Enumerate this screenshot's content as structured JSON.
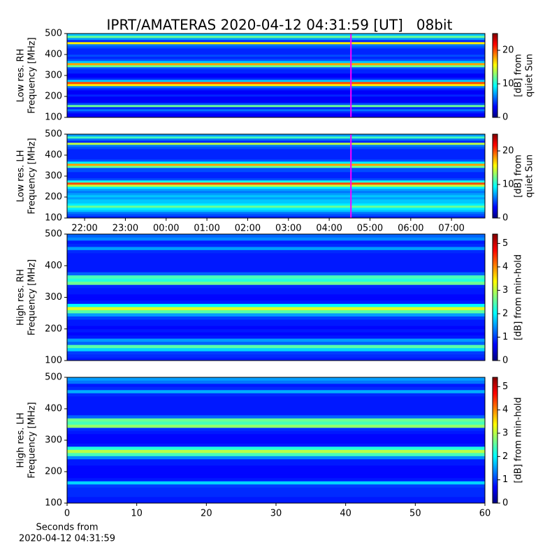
{
  "title": "IPRT/AMATERAS 2020-04-12 04:31:59 [UT]   08bit",
  "chart_data": [
    {
      "type": "heatmap",
      "ylabel": [
        "Low res. RH",
        "Frequency [MHz]"
      ],
      "colormap": "jet",
      "y": [
        105,
        115,
        125,
        135,
        145,
        155,
        165,
        175,
        185,
        195,
        205,
        215,
        225,
        235,
        245,
        255,
        265,
        275,
        285,
        295,
        305,
        315,
        325,
        335,
        345,
        355,
        365,
        375,
        385,
        395,
        405,
        415,
        425,
        435,
        445,
        455,
        465,
        475,
        485,
        495
      ],
      "values": [
        3,
        3,
        4,
        6,
        4,
        12,
        5,
        3,
        3,
        3,
        4,
        3,
        3,
        4,
        6,
        16,
        20,
        8,
        4,
        3,
        3,
        4,
        4,
        5,
        12,
        18,
        8,
        5,
        4,
        5,
        4,
        4,
        4,
        5,
        6,
        16,
        4,
        7,
        12,
        8
      ],
      "ylim": [
        100,
        500
      ],
      "yticks": [
        100,
        200,
        300,
        400,
        500
      ],
      "xlim": [
        21.57,
        31.82
      ],
      "marker_x": 28.533,
      "marker_color": "#ff00ff",
      "clim": [
        0,
        25
      ],
      "cticks": [
        0,
        10,
        20
      ],
      "clabel": [
        "[dB] from",
        "quiet Sun"
      ]
    },
    {
      "type": "heatmap",
      "ylabel": [
        "Low res. LH",
        "Frequency [MHz]"
      ],
      "colormap": "jet",
      "y": [
        105,
        115,
        125,
        135,
        145,
        155,
        165,
        175,
        185,
        195,
        205,
        215,
        225,
        235,
        245,
        255,
        265,
        275,
        285,
        295,
        305,
        315,
        325,
        335,
        345,
        355,
        365,
        375,
        385,
        395,
        405,
        415,
        425,
        435,
        445,
        455,
        465,
        475,
        485,
        495
      ],
      "values": [
        4,
        5,
        6,
        8,
        9,
        12,
        9,
        8,
        8,
        7,
        8,
        7,
        6,
        7,
        9,
        14,
        20,
        10,
        5,
        4,
        4,
        4,
        5,
        5,
        12,
        18,
        9,
        5,
        4,
        4,
        4,
        4,
        4,
        5,
        6,
        14,
        4,
        6,
        11,
        7
      ],
      "ylim": [
        100,
        500
      ],
      "yticks": [
        100,
        200,
        300,
        400,
        500
      ],
      "xlim": [
        21.57,
        31.82
      ],
      "xticks": [
        {
          "value": 22,
          "label": "22:00"
        },
        {
          "value": 23,
          "label": "23:00"
        },
        {
          "value": 24,
          "label": "00:00"
        },
        {
          "value": 25,
          "label": "01:00"
        },
        {
          "value": 26,
          "label": "02:00"
        },
        {
          "value": 27,
          "label": "03:00"
        },
        {
          "value": 28,
          "label": "04:00"
        },
        {
          "value": 29,
          "label": "05:00"
        },
        {
          "value": 30,
          "label": "06:00"
        },
        {
          "value": 31,
          "label": "07:00"
        }
      ],
      "marker_x": 28.533,
      "marker_color": "#ff00ff",
      "clim": [
        0,
        25
      ],
      "cticks": [
        0,
        10,
        20
      ],
      "clabel": [
        "[dB] from",
        "quiet Sun"
      ]
    },
    {
      "type": "heatmap",
      "ylabel": [
        "High res. RH",
        "Frequency [MHz]"
      ],
      "colormap": "jet",
      "y": [
        105,
        115,
        125,
        135,
        145,
        155,
        165,
        175,
        185,
        195,
        205,
        215,
        225,
        235,
        245,
        255,
        265,
        275,
        285,
        295,
        305,
        315,
        325,
        335,
        345,
        355,
        365,
        375,
        385,
        395,
        405,
        415,
        425,
        435,
        445,
        455,
        465,
        475,
        485,
        495
      ],
      "values": [
        0.8,
        0.9,
        1.0,
        1.8,
        2.5,
        1.2,
        1.5,
        0.8,
        0.7,
        0.8,
        0.7,
        0.8,
        0.8,
        1.0,
        1.5,
        2.5,
        3.2,
        2.0,
        0.8,
        0.7,
        0.7,
        0.8,
        0.8,
        0.9,
        2.6,
        2.2,
        2.4,
        1.2,
        0.8,
        0.8,
        0.8,
        0.8,
        0.8,
        0.8,
        0.9,
        1.5,
        0.9,
        0.8,
        1.4,
        1.2
      ],
      "ylim": [
        100,
        500
      ],
      "yticks": [
        100,
        200,
        300,
        400,
        500
      ],
      "xlim": [
        0,
        60
      ],
      "clim": [
        0,
        5.4
      ],
      "cticks": [
        0,
        1,
        2,
        3,
        4,
        5
      ],
      "clabel": [
        "[dB] from min-hold"
      ]
    },
    {
      "type": "heatmap",
      "ylabel": [
        "High res. LH",
        "Frequency [MHz]"
      ],
      "colormap": "jet",
      "y": [
        105,
        115,
        125,
        135,
        145,
        155,
        165,
        175,
        185,
        195,
        205,
        215,
        225,
        235,
        245,
        255,
        265,
        275,
        285,
        295,
        305,
        315,
        325,
        335,
        345,
        355,
        365,
        375,
        385,
        395,
        405,
        415,
        425,
        435,
        445,
        455,
        465,
        475,
        485,
        495
      ],
      "values": [
        0.8,
        0.8,
        0.9,
        0.9,
        0.9,
        1.0,
        1.8,
        0.8,
        0.7,
        0.7,
        0.7,
        0.7,
        0.8,
        0.8,
        1.4,
        2.4,
        3.0,
        2.2,
        0.8,
        0.7,
        0.7,
        0.7,
        0.8,
        0.9,
        2.8,
        2.4,
        2.6,
        1.2,
        0.8,
        0.8,
        0.8,
        0.8,
        0.8,
        0.8,
        0.9,
        1.6,
        0.9,
        0.8,
        1.3,
        1.5
      ],
      "ylim": [
        100,
        500
      ],
      "yticks": [
        100,
        200,
        300,
        400,
        500
      ],
      "xlim": [
        0,
        60
      ],
      "xticks": [
        0,
        10,
        20,
        30,
        40,
        50,
        60
      ],
      "xlabel": [
        "Seconds from",
        "2020-04-12 04:31:59"
      ],
      "clim": [
        0,
        5.4
      ],
      "cticks": [
        0,
        1,
        2,
        3,
        4,
        5
      ],
      "clabel": [
        "[dB] from min-hold"
      ]
    }
  ]
}
